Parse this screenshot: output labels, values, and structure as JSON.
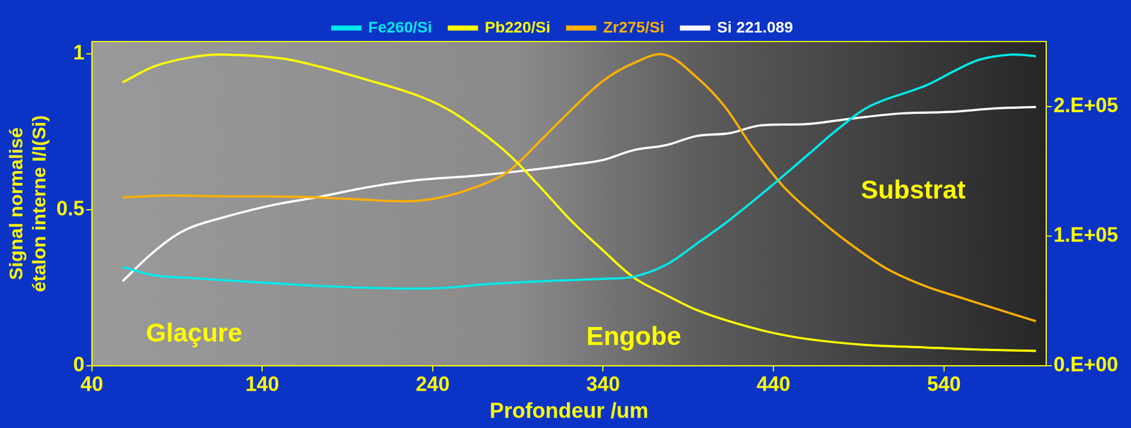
{
  "chart_data": {
    "type": "line",
    "x_label": "Profondeur /um",
    "y_label": [
      "Signal normalisé",
      "étalon interne I/I(Si)"
    ],
    "xlim": [
      40,
      600
    ],
    "xticks": [
      40,
      140,
      240,
      340,
      440,
      540
    ],
    "ylim": [
      0,
      1.04
    ],
    "yticks": [
      0,
      0.5,
      1
    ],
    "y2lim": [
      0,
      250000
    ],
    "y2ticks": [
      {
        "value": 0,
        "label": "0.E+00"
      },
      {
        "value": 100000,
        "label": "1.E+05"
      },
      {
        "value": 200000,
        "label": "2.E+05"
      }
    ],
    "grid": false,
    "legend": "top",
    "series": [
      {
        "name": "Fe260/Si",
        "color": "#00e8e8",
        "x": [
          58,
          77,
          100,
          137,
          174,
          211,
          243,
          275,
          308,
          340,
          358,
          377,
          395,
          414,
          437,
          460,
          478,
          497,
          529,
          547,
          561,
          580,
          594
        ],
        "values": [
          0.317,
          0.29,
          0.281,
          0.268,
          0.256,
          0.249,
          0.249,
          0.263,
          0.272,
          0.279,
          0.286,
          0.324,
          0.392,
          0.467,
          0.569,
          0.676,
          0.76,
          0.834,
          0.898,
          0.948,
          0.982,
          0.998,
          0.993
        ]
      },
      {
        "name": "Pb220/Si",
        "color": "#ffff00",
        "x": [
          58,
          77,
          98,
          116,
          151,
          174,
          201,
          229,
          248,
          266,
          285,
          303,
          321,
          340,
          358,
          377,
          395,
          414,
          437,
          460,
          492,
          529,
          561,
          594
        ],
        "values": [
          0.909,
          0.961,
          0.989,
          0.998,
          0.986,
          0.959,
          0.918,
          0.871,
          0.825,
          0.76,
          0.676,
          0.574,
          0.467,
          0.37,
          0.283,
          0.227,
          0.179,
          0.143,
          0.109,
          0.086,
          0.068,
          0.059,
          0.052,
          0.048
        ]
      },
      {
        "name": "Zr275/Si",
        "color": "#ffb000",
        "x": [
          58,
          82,
          114,
          160,
          192,
          227,
          248,
          271,
          285,
          305,
          321,
          340,
          358,
          376,
          395,
          411,
          428,
          446,
          464,
          483,
          506,
          529,
          552,
          570,
          594
        ],
        "values": [
          0.54,
          0.546,
          0.544,
          0.542,
          0.535,
          0.528,
          0.544,
          0.585,
          0.626,
          0.732,
          0.819,
          0.914,
          0.971,
          0.998,
          0.925,
          0.834,
          0.698,
          0.574,
          0.483,
          0.399,
          0.313,
          0.256,
          0.215,
          0.184,
          0.143
        ]
      },
      {
        "name": "Si 221.089",
        "color": "#ffffff",
        "axis": "y2",
        "x": [
          58,
          77,
          95,
          118,
          146,
          174,
          201,
          229,
          266,
          294,
          321,
          340,
          358,
          377,
          395,
          414,
          432,
          460,
          487,
          515,
          543,
          570,
          594
        ],
        "values": [
          65200,
          88600,
          104900,
          114700,
          123900,
          130400,
          137500,
          142900,
          146700,
          150500,
          154900,
          158700,
          166300,
          170100,
          177200,
          179300,
          185300,
          186400,
          190800,
          194600,
          195700,
          198400,
          199500
        ]
      }
    ],
    "annotations": [
      {
        "text": "Glaçure",
        "x": 100,
        "y": 0.1
      },
      {
        "text": "Engobe",
        "x": 358,
        "y": 0.09
      },
      {
        "text": "Substrat",
        "x": 522,
        "y": 0.56
      }
    ]
  }
}
